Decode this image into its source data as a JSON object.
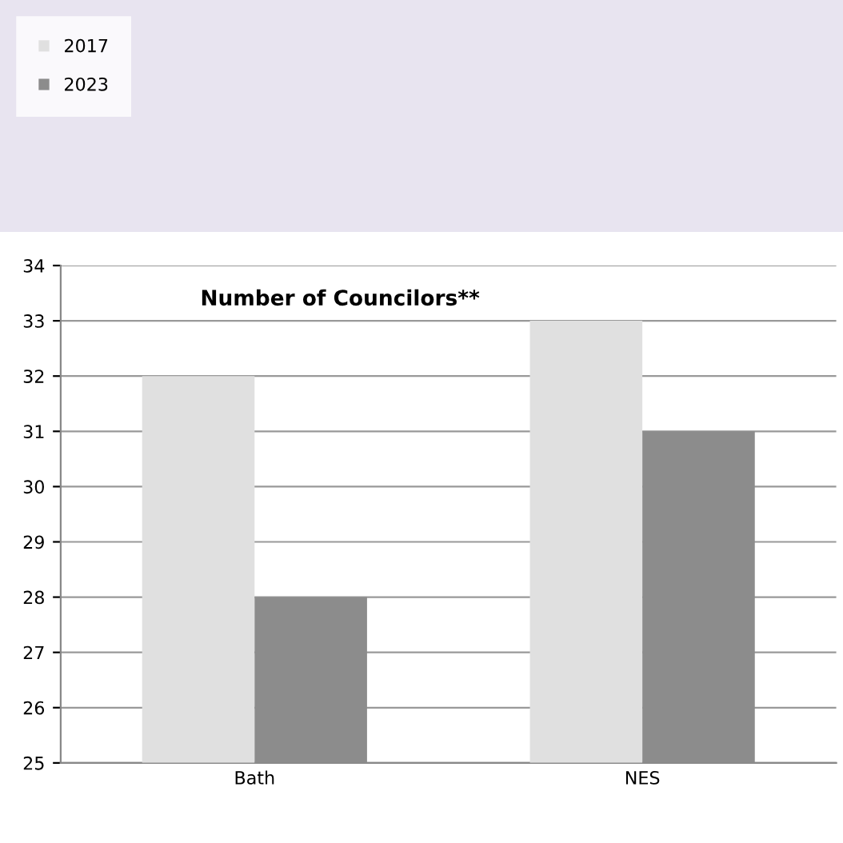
{
  "chart_data": {
    "type": "bar",
    "title": "Number of Councilors**",
    "categories": [
      "Bath",
      "NES"
    ],
    "series": [
      {
        "name": "2017",
        "color": "#e0e0e0",
        "values": [
          32,
          33
        ]
      },
      {
        "name": "2023",
        "color": "#8c8c8c",
        "values": [
          28,
          31
        ]
      }
    ],
    "ylim": [
      25,
      34
    ],
    "yticks": [
      25,
      26,
      27,
      28,
      29,
      30,
      31,
      32,
      33,
      34
    ],
    "grid": "y",
    "legend": "top left"
  }
}
